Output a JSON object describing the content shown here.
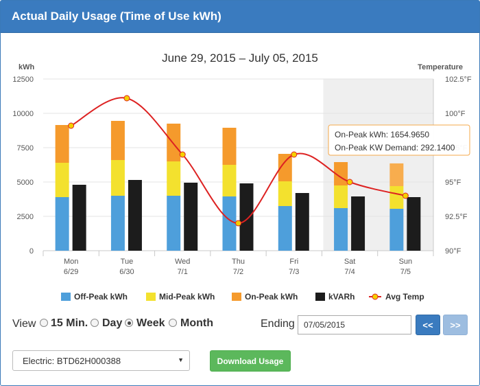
{
  "header": {
    "title": "Actual Daily Usage (Time of Use kWh)"
  },
  "chart_data": {
    "type": "bar",
    "stacked": true,
    "title": "June 29, 2015 – July 05, 2015",
    "ylabel": "kWh",
    "y2label": "Temperature",
    "ylim": [
      0,
      12500
    ],
    "y2lim": [
      90,
      102.5
    ],
    "yticks": [
      "0",
      "2500",
      "5000",
      "7500",
      "10000",
      "12500"
    ],
    "y2ticks": [
      "90°F",
      "92.5°F",
      "95°F",
      "97.5°F",
      "100°F",
      "102.5°F"
    ],
    "grid": true,
    "categories": [
      {
        "day": "Mon",
        "date": "6/29"
      },
      {
        "day": "Tue",
        "date": "6/30"
      },
      {
        "day": "Wed",
        "date": "7/1"
      },
      {
        "day": "Thu",
        "date": "7/2"
      },
      {
        "day": "Fri",
        "date": "7/3"
      },
      {
        "day": "Sat",
        "date": "7/4"
      },
      {
        "day": "Sun",
        "date": "7/5"
      }
    ],
    "weekend_shaded": [
      "Sat",
      "Sun"
    ],
    "series": [
      {
        "name": "Off-Peak kWh",
        "color": "#4e9fdb",
        "stack": "usage",
        "values": [
          3900,
          4000,
          4000,
          3950,
          3250,
          3100,
          3050
        ]
      },
      {
        "name": "Mid-Peak kWh",
        "color": "#f3e12e",
        "stack": "usage",
        "values": [
          2500,
          2600,
          2500,
          2300,
          1800,
          1650,
          1650
        ]
      },
      {
        "name": "On-Peak kWh",
        "color": "#f59a2c",
        "stack": "usage",
        "values": [
          2750,
          2850,
          2750,
          2700,
          2000,
          1700,
          1655
        ]
      },
      {
        "name": "kVARh",
        "color": "#1c1c1c",
        "stack": "reactive",
        "values": [
          4800,
          5150,
          4950,
          4900,
          4200,
          3950,
          3900
        ]
      },
      {
        "name": "Avg Temp",
        "color": "#dd2222",
        "marker_color": "#f5d000",
        "type": "line",
        "axis": "y2",
        "values": [
          99.1,
          101.1,
          97.0,
          92.0,
          97.0,
          95.0,
          94.0
        ]
      }
    ],
    "highlight_index": 6,
    "tooltip": {
      "lines": [
        "On-Peak kWh: 1654.9650",
        "On-Peak KW Demand: 292.1400"
      ]
    },
    "legend_position": "bottom"
  },
  "controls": {
    "view_label": "View",
    "options": [
      {
        "label": "15 Min.",
        "checked": false
      },
      {
        "label": "Day",
        "checked": false
      },
      {
        "label": "Week",
        "checked": true
      },
      {
        "label": "Month",
        "checked": false
      }
    ],
    "ending_label": "Ending",
    "ending_date": "07/05/2015",
    "prev_label": "<<",
    "next_label": ">>"
  },
  "meter_select": {
    "value": "Electric: BTD62H000388"
  },
  "download_label": "Download Usage"
}
